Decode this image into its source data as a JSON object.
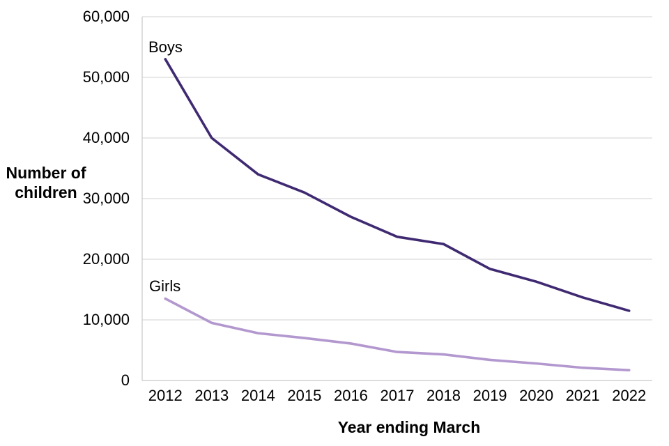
{
  "chart_data": {
    "type": "line",
    "title": "",
    "xlabel": "Year ending March",
    "ylabel": "Number of children",
    "categories": [
      2012,
      2013,
      2014,
      2015,
      2016,
      2017,
      2018,
      2019,
      2020,
      2021,
      2022
    ],
    "series": [
      {
        "name": "Boys",
        "color": "#3f2a72",
        "values": [
          53000,
          40000,
          34000,
          31000,
          27000,
          23700,
          22500,
          18400,
          16300,
          13700,
          11500
        ]
      },
      {
        "name": "Girls",
        "color": "#b398cf",
        "values": [
          13500,
          9500,
          7800,
          7000,
          6100,
          4700,
          4300,
          3400,
          2800,
          2100,
          1700
        ]
      }
    ],
    "ylim": [
      0,
      60000
    ],
    "yticks": [
      0,
      10000,
      20000,
      30000,
      40000,
      50000,
      60000
    ],
    "ytick_labels": [
      "0",
      "10,000",
      "20,000",
      "30,000",
      "40,000",
      "50,000",
      "60,000"
    ],
    "grid": "horizontal gridlines on, vertical off",
    "legend": "inline labels at start of each line",
    "grid_color": "#d9d9d9",
    "axis_color": "#cccccc",
    "text_color": "#000000",
    "background_color": "#ffffff"
  }
}
